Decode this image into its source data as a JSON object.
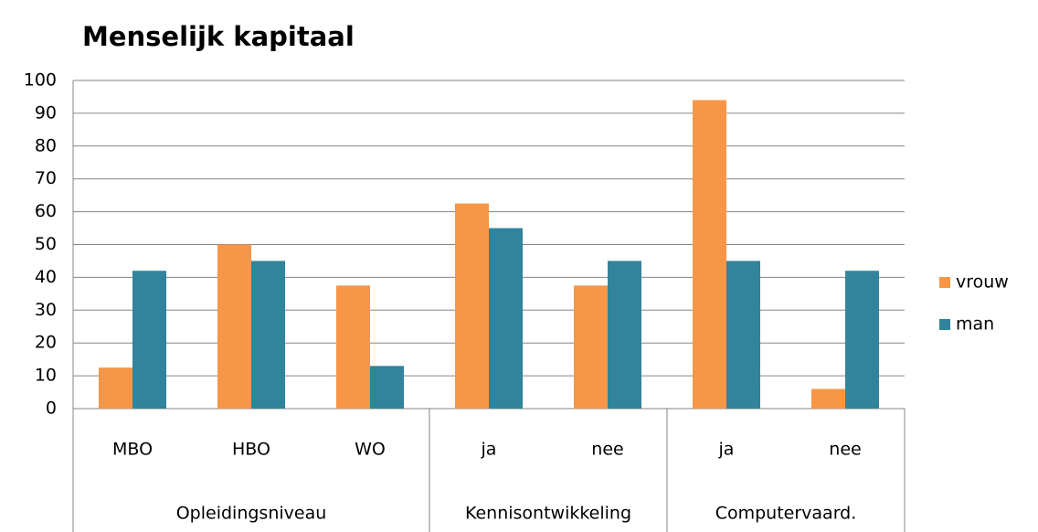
{
  "chart_data": {
    "type": "bar",
    "title": "Menselijk kapitaal",
    "groups": [
      {
        "name": "Opleidingsniveau",
        "categories": [
          "MBO",
          "HBO",
          "WO"
        ]
      },
      {
        "name": "Kennisontwikkeling",
        "categories": [
          "ja",
          "nee"
        ]
      },
      {
        "name": "Computervaard.",
        "categories": [
          "ja",
          "nee"
        ]
      }
    ],
    "series": [
      {
        "name": "vrouw",
        "color": "#f79646",
        "values": [
          12.5,
          50,
          37.5,
          62.5,
          37.5,
          94,
          6
        ]
      },
      {
        "name": "man",
        "color": "#31849b",
        "values": [
          42,
          45,
          13,
          55,
          45,
          45,
          42
        ]
      }
    ],
    "ylim": [
      0,
      100
    ],
    "yticks": [
      0,
      10,
      20,
      30,
      40,
      50,
      60,
      70,
      80,
      90,
      100
    ],
    "grid": true,
    "legend": "right"
  }
}
